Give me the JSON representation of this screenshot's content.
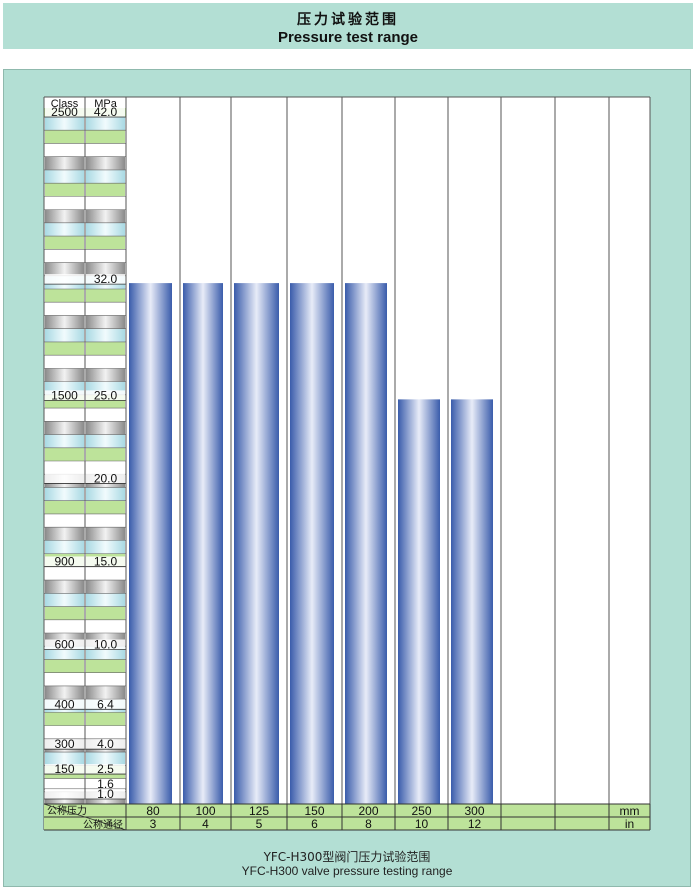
{
  "header": {
    "title_cn": "压力试验范围",
    "title_en": "Pressure test range"
  },
  "caption": {
    "line1": "YFC-H300型阀门压力试验范围",
    "line2": "YFC-H300 valve pressure testing range"
  },
  "chart_data": {
    "type": "bar",
    "ylim": [
      0,
      42
    ],
    "column_headers": [
      "Class",
      "MPa"
    ],
    "y_ticks": [
      {
        "value": 42.0,
        "mpa": "42.0",
        "class": "2500"
      },
      {
        "value": 32.0,
        "mpa": "32.0",
        "class": ""
      },
      {
        "value": 25.0,
        "mpa": "25.0",
        "class": "1500"
      },
      {
        "value": 20.0,
        "mpa": "20.0",
        "class": ""
      },
      {
        "value": 15.0,
        "mpa": "15.0",
        "class": "900"
      },
      {
        "value": 10.0,
        "mpa": "10.0",
        "class": "600"
      },
      {
        "value": 6.4,
        "mpa": "6.4",
        "class": "400"
      },
      {
        "value": 4.0,
        "mpa": "4.0",
        "class": "300"
      },
      {
        "value": 2.5,
        "mpa": "2.5",
        "class": "150"
      },
      {
        "value": 1.6,
        "mpa": "1.6",
        "class": ""
      },
      {
        "value": 1.0,
        "mpa": "1.0",
        "class": ""
      }
    ],
    "row_label_1": "公称压力",
    "row_label_2": "公称通径",
    "unit_mm": "mm",
    "unit_in": "in",
    "categories_mm": [
      "80",
      "100",
      "125",
      "150",
      "200",
      "250",
      "300",
      "",
      "",
      ""
    ],
    "categories_in": [
      "3",
      "4",
      "5",
      "6",
      "8",
      "10",
      "12",
      "",
      "",
      ""
    ],
    "values": [
      32,
      32,
      32,
      32,
      32,
      25,
      25,
      null,
      null,
      null
    ],
    "bar_color": "#3a5cab",
    "bar_highlight": "#e8ecf8"
  }
}
